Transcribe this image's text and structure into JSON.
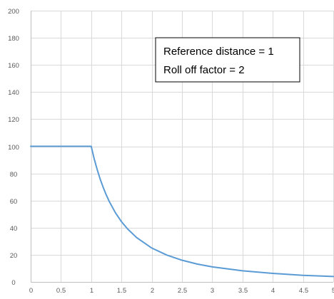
{
  "chart_data": {
    "type": "line",
    "x": [
      1,
      1.05,
      1.1,
      1.15,
      1.2,
      1.25,
      1.3,
      1.4,
      1.5,
      1.6,
      1.75,
      2,
      2.25,
      2.5,
      2.75,
      3,
      3.5,
      4,
      4.5,
      5
    ],
    "xlim": [
      0,
      5
    ],
    "ylim": [
      0,
      200
    ],
    "xticks": [
      "0",
      "0.5",
      "1",
      "1.5",
      "2",
      "2.5",
      "3",
      "3.5",
      "4",
      "4.5",
      "5"
    ],
    "yticks": [
      "0",
      "20",
      "40",
      "60",
      "80",
      "100",
      "120",
      "140",
      "160",
      "180",
      "200"
    ],
    "grid": true,
    "series": [
      {
        "color": "#5b9bd5",
        "x": [
          0,
          0.1,
          0.2,
          0.3,
          0.4,
          0.5,
          0.6,
          0.7,
          0.8,
          0.9,
          1,
          1.05,
          1.1,
          1.15,
          1.2,
          1.25,
          1.3,
          1.4,
          1.5,
          1.6,
          1.75,
          2,
          2.25,
          2.5,
          2.75,
          3,
          3.5,
          4,
          4.5,
          5
        ],
        "values": [
          100,
          100,
          100,
          100,
          100,
          100,
          100,
          100,
          100,
          100,
          100,
          90.7,
          82.6,
          75.6,
          69.4,
          64,
          59.2,
          51,
          44.4,
          39.1,
          32.7,
          25,
          19.8,
          16,
          13.2,
          11.1,
          8.2,
          6.3,
          4.9,
          4
        ]
      }
    ],
    "annotations": [
      "Reference distance = 1",
      "Roll off factor = 2"
    ]
  }
}
